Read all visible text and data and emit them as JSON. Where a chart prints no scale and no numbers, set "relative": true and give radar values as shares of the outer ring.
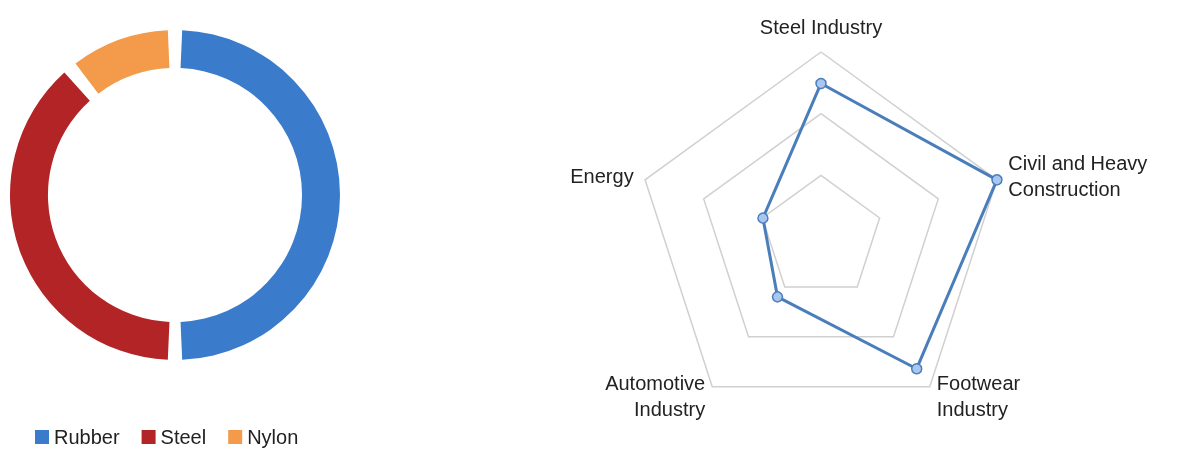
{
  "chart_data": [
    {
      "type": "donut",
      "categories": [
        "Rubber",
        "Steel",
        "Nylon"
      ],
      "values": [
        50,
        39,
        11
      ],
      "colors": [
        "#3a7bcc",
        "#b22426",
        "#f39a4b"
      ],
      "legend": "bottom left"
    },
    {
      "type": "radar",
      "categories": [
        "Steel Industry",
        "Civil and Heavy Construction",
        "Footwear Industry",
        "Automotive Industry",
        "Energy"
      ],
      "relative": true,
      "grid": true,
      "marker": "circle",
      "line_style": "solid",
      "series": [
        {
          "color": "#4a7ebb",
          "values": [
            0.83,
            1,
            0.88,
            0.4,
            0.33
          ]
        }
      ]
    }
  ]
}
